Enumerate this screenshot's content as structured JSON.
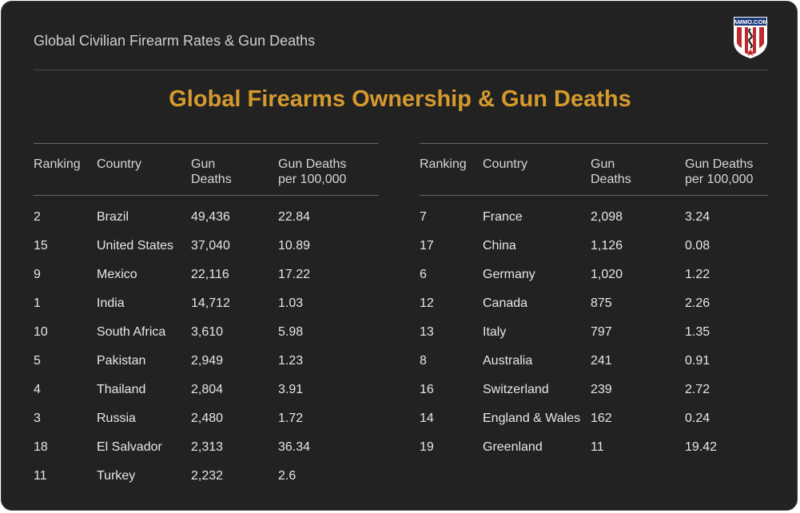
{
  "header": {
    "title": "Global Civilian Firearm Rates & Gun Deaths",
    "logo_text": "AMMO.COM"
  },
  "main_title": "Global Firearms Ownership & Gun Deaths",
  "columns": {
    "ranking": "Ranking",
    "country": "Country",
    "gun_deaths_line1": "Gun",
    "gun_deaths_line2": "Deaths",
    "per100k_line1": "Gun Deaths",
    "per100k_line2": "per 100,000"
  },
  "left_table": [
    {
      "rank": "2",
      "country": "Brazil",
      "deaths": "49,436",
      "rate": "22.84"
    },
    {
      "rank": "15",
      "country": "United States",
      "deaths": "37,040",
      "rate": "10.89"
    },
    {
      "rank": "9",
      "country": "Mexico",
      "deaths": "22,116",
      "rate": "17.22"
    },
    {
      "rank": "1",
      "country": "India",
      "deaths": "14,712",
      "rate": "1.03"
    },
    {
      "rank": "10",
      "country": "South Africa",
      "deaths": "3,610",
      "rate": "5.98"
    },
    {
      "rank": "5",
      "country": "Pakistan",
      "deaths": "2,949",
      "rate": "1.23"
    },
    {
      "rank": "4",
      "country": "Thailand",
      "deaths": "2,804",
      "rate": "3.91"
    },
    {
      "rank": "3",
      "country": "Russia",
      "deaths": "2,480",
      "rate": "1.72"
    },
    {
      "rank": "18",
      "country": "El Salvador",
      "deaths": "2,313",
      "rate": "36.34"
    },
    {
      "rank": "11",
      "country": "Turkey",
      "deaths": "2,232",
      "rate": "2.6"
    }
  ],
  "right_table": [
    {
      "rank": "7",
      "country": "France",
      "deaths": "2,098",
      "rate": "3.24"
    },
    {
      "rank": "17",
      "country": "China",
      "deaths": "1,126",
      "rate": "0.08"
    },
    {
      "rank": "6",
      "country": "Germany",
      "deaths": "1,020",
      "rate": "1.22"
    },
    {
      "rank": "12",
      "country": "Canada",
      "deaths": "875",
      "rate": "2.26"
    },
    {
      "rank": "13",
      "country": "Italy",
      "deaths": "797",
      "rate": "1.35"
    },
    {
      "rank": "8",
      "country": "Australia",
      "deaths": "241",
      "rate": "0.91"
    },
    {
      "rank": "16",
      "country": "Switzerland",
      "deaths": "239",
      "rate": "2.72"
    },
    {
      "rank": "14",
      "country": "England & Wales",
      "deaths": "162",
      "rate": "0.24"
    },
    {
      "rank": "19",
      "country": "Greenland",
      "deaths": "11",
      "rate": "19.42"
    }
  ],
  "colors": {
    "background": "#222222",
    "title_accent": "#d59a2d",
    "text": "#e6e6e6",
    "rule": "#6a6a6a"
  }
}
